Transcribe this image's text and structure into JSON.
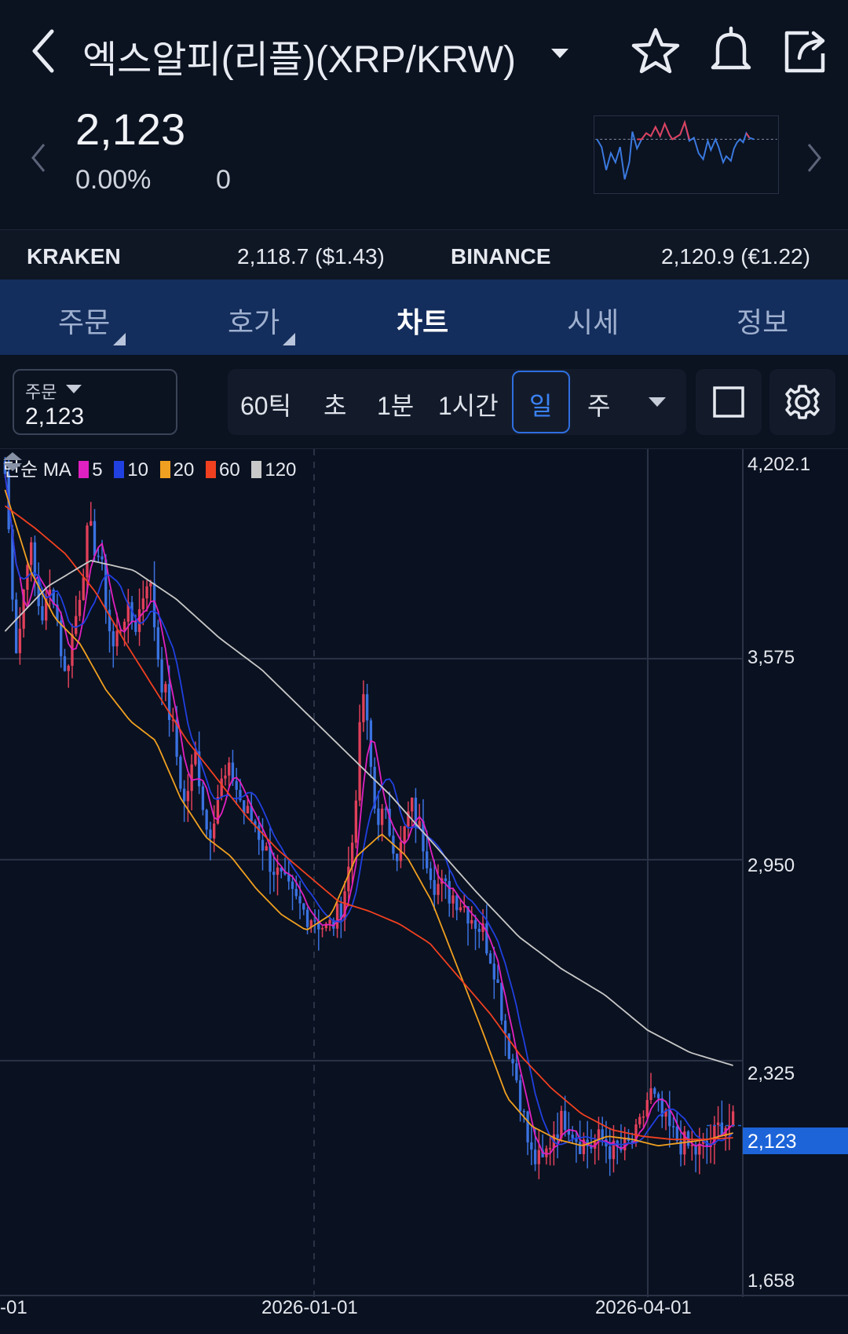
{
  "header": {
    "title": "엑스알피(리플)(XRP/KRW)",
    "icons": [
      "back-chevron-icon",
      "dropdown-caret-icon",
      "star-icon",
      "bell-icon",
      "share-icon"
    ]
  },
  "price": {
    "current": "2,123",
    "change_pct": "0.00%",
    "change_abs": "0"
  },
  "exchanges": {
    "kraken": {
      "name": "KRAKEN",
      "value": "2,118.7 ($1.43)"
    },
    "binance": {
      "name": "BINANCE",
      "value": "2,120.9 (€1.22)"
    }
  },
  "tabs": [
    {
      "label": "주문",
      "active": false
    },
    {
      "label": "호가",
      "active": false
    },
    {
      "label": "차트",
      "active": true
    },
    {
      "label": "시세",
      "active": false
    },
    {
      "label": "정보",
      "active": false
    }
  ],
  "toolbar": {
    "order_label": "주문",
    "order_value": "2,123",
    "intervals": [
      "60틱",
      "초",
      "1분",
      "1시간",
      "일",
      "주"
    ],
    "selected_interval": "일"
  },
  "chart_data": {
    "type": "candlestick",
    "legend": {
      "title": "단순 MA",
      "items": [
        {
          "label": "5",
          "color": "#e020c0"
        },
        {
          "label": "10",
          "color": "#2040e0"
        },
        {
          "label": "20",
          "color": "#f0a020"
        },
        {
          "label": "60",
          "color": "#f04020"
        },
        {
          "label": "120",
          "color": "#c8c8c8"
        }
      ]
    },
    "y_ticks": [
      "4,202.1",
      "3,575",
      "2,950",
      "2,325",
      "1,658"
    ],
    "y_tick_values": [
      4202.1,
      3575,
      2950,
      2325,
      1658
    ],
    "ylim": [
      1658,
      4202.1
    ],
    "x_ticks": [
      "-01",
      "2026-01-01",
      "2026-04-01"
    ],
    "last_price": "2,123",
    "last_price_value": 2123,
    "colors": {
      "up": "#e0405a",
      "down": "#3a72e0",
      "ma5": "#e020c0",
      "ma10": "#2040e0",
      "ma20": "#f0a020",
      "ma60": "#f04020",
      "ma120": "#c8c8c8"
    },
    "series_anchors": {
      "close": [
        4150,
        3580,
        3950,
        3700,
        3800,
        3520,
        3720,
        3980,
        3880,
        3600,
        3720,
        3680,
        3850,
        3530,
        3370,
        3120,
        3280,
        3020,
        3180,
        3220,
        3100,
        3060,
        2960,
        2890,
        2830,
        2790,
        2770,
        2730,
        2780,
        2960,
        3480,
        3100,
        3070,
        2960,
        3120,
        3010,
        2880,
        2850,
        2830,
        2780,
        2730,
        2620,
        2400,
        2250,
        2030,
        2000,
        2110,
        2150,
        2080,
        2060,
        2080,
        2040,
        2050,
        2090,
        2230,
        2150,
        2090,
        2060,
        2040,
        2060,
        2130,
        2123
      ],
      "ma20": [
        4100,
        3850,
        3700,
        3620,
        3480,
        3380,
        3320,
        3140,
        3020,
        2960,
        2860,
        2780,
        2730,
        2780,
        2960,
        3030,
        2960,
        2820,
        2620,
        2420,
        2210,
        2120,
        2080,
        2060,
        2090,
        2080,
        2060,
        2070,
        2080,
        2100
      ],
      "ma60": [
        4050,
        3980,
        3900,
        3780,
        3620,
        3470,
        3320,
        3200,
        3080,
        2980,
        2900,
        2820,
        2790,
        2750,
        2690,
        2580,
        2470,
        2340,
        2240,
        2160,
        2110,
        2090,
        2080,
        2080,
        2085
      ],
      "ma120": [
        3660,
        3800,
        3880,
        3850,
        3760,
        3640,
        3540,
        3410,
        3280,
        3150,
        3000,
        2850,
        2710,
        2610,
        2530,
        2420,
        2350,
        2310
      ]
    }
  }
}
